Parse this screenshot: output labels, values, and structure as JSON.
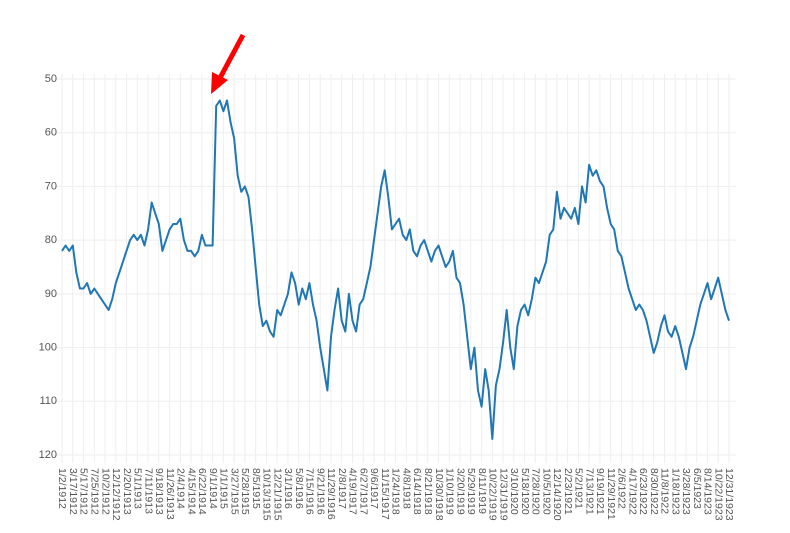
{
  "chart_data": {
    "type": "line",
    "y_reversed": true,
    "grid": true,
    "ylim": [
      50,
      120
    ],
    "yticks": [
      50,
      60,
      70,
      80,
      90,
      100,
      110,
      120
    ],
    "categories": [
      "1/2/1912",
      null,
      null,
      "3/17/1912",
      null,
      null,
      "5/17/1912",
      null,
      null,
      "7/25/1912",
      null,
      null,
      "10/2/1912",
      null,
      null,
      "12/12/1912",
      null,
      null,
      "2/20/1913",
      null,
      null,
      "5/1/1913",
      null,
      null,
      "7/11/1913",
      null,
      null,
      "9/18/1913",
      null,
      null,
      "11/26/1913",
      null,
      null,
      "2/4/1914",
      null,
      null,
      "4/15/1914",
      null,
      null,
      "6/22/1914",
      null,
      null,
      "9/1/1914",
      null,
      null,
      "1/1/1915",
      null,
      null,
      "3/27/1915",
      null,
      null,
      "5/28/1915",
      null,
      null,
      "8/5/1915",
      null,
      null,
      "10/13/1915",
      null,
      null,
      "12/21/1915",
      null,
      null,
      "3/1/1916",
      null,
      null,
      "5/8/1916",
      null,
      null,
      "7/15/1916",
      null,
      null,
      "9/21/1916",
      null,
      null,
      "11/29/1916",
      null,
      null,
      "2/8/1917",
      null,
      null,
      "4/19/1917",
      null,
      null,
      "6/27/1917",
      null,
      null,
      "9/6/1917",
      null,
      null,
      "11/15/1917",
      null,
      null,
      "1/24/1918",
      null,
      null,
      "4/8/1918",
      null,
      null,
      "6/14/1918",
      null,
      null,
      "8/21/1918",
      null,
      null,
      "10/30/1918",
      null,
      null,
      "1/10/1919",
      null,
      null,
      "3/20/1919",
      null,
      null,
      "5/29/1919",
      null,
      null,
      "8/11/1919",
      null,
      null,
      "10/22/1919",
      null,
      null,
      "12/31/1919",
      null,
      null,
      "3/10/1920",
      null,
      null,
      "5/18/1920",
      null,
      null,
      "7/28/1920",
      null,
      null,
      "10/5/1920",
      null,
      null,
      "12/14/1920",
      null,
      null,
      "2/23/1921",
      null,
      null,
      "5/2/1921",
      null,
      null,
      "7/13/1921",
      null,
      null,
      "9/19/1921",
      null,
      null,
      "11/29/1921",
      null,
      null,
      "2/6/1922",
      null,
      null,
      "4/17/1922",
      null,
      null,
      "6/23/1922",
      null,
      null,
      "8/30/1922",
      null,
      null,
      "11/8/1922",
      null,
      null,
      "1/18/1923",
      null,
      null,
      "3/28/1923",
      null,
      null,
      "6/5/1923",
      null,
      null,
      "8/14/1923",
      null,
      null,
      "10/22/1923",
      null,
      null,
      "12/31/1923"
    ],
    "series": [
      {
        "color": "#1f77b4",
        "values": [
          82,
          81,
          82,
          81,
          86,
          89,
          89,
          88,
          90,
          89,
          90,
          91,
          92,
          93,
          91,
          88,
          86,
          84,
          82,
          80,
          79,
          80,
          79,
          81,
          78,
          73,
          75,
          77,
          82,
          80,
          78,
          77,
          77,
          76,
          80,
          82,
          82,
          83,
          82,
          79,
          81,
          81,
          81,
          55,
          54,
          56,
          54,
          58,
          61,
          68,
          71,
          70,
          72,
          78,
          85,
          92,
          96,
          95,
          97,
          98,
          93,
          94,
          92,
          90,
          86,
          88,
          92,
          89,
          91,
          88,
          92,
          95,
          100,
          104,
          108,
          98,
          93,
          89,
          95,
          97,
          90,
          95,
          97,
          92,
          91,
          88,
          85,
          80,
          75,
          70,
          67,
          72,
          78,
          77,
          76,
          79,
          80,
          78,
          82,
          83,
          81,
          80,
          82,
          84,
          82,
          81,
          83,
          85,
          84,
          82,
          87,
          88,
          92,
          98,
          104,
          100,
          108,
          111,
          104,
          108,
          117,
          107,
          104,
          99,
          93,
          100,
          104,
          96,
          93,
          92,
          94,
          91,
          87,
          88,
          86,
          84,
          79,
          78,
          71,
          76,
          74,
          75,
          76,
          74,
          77,
          70,
          73,
          66,
          68,
          67,
          69,
          70,
          74,
          77,
          78,
          82,
          83,
          86,
          89,
          91,
          93,
          92,
          93,
          95,
          98,
          101,
          99,
          96,
          94,
          97,
          98,
          96,
          98,
          101,
          104,
          100,
          98,
          95,
          92,
          90,
          88,
          91,
          89,
          87,
          90,
          93,
          95
        ]
      }
    ]
  }
}
